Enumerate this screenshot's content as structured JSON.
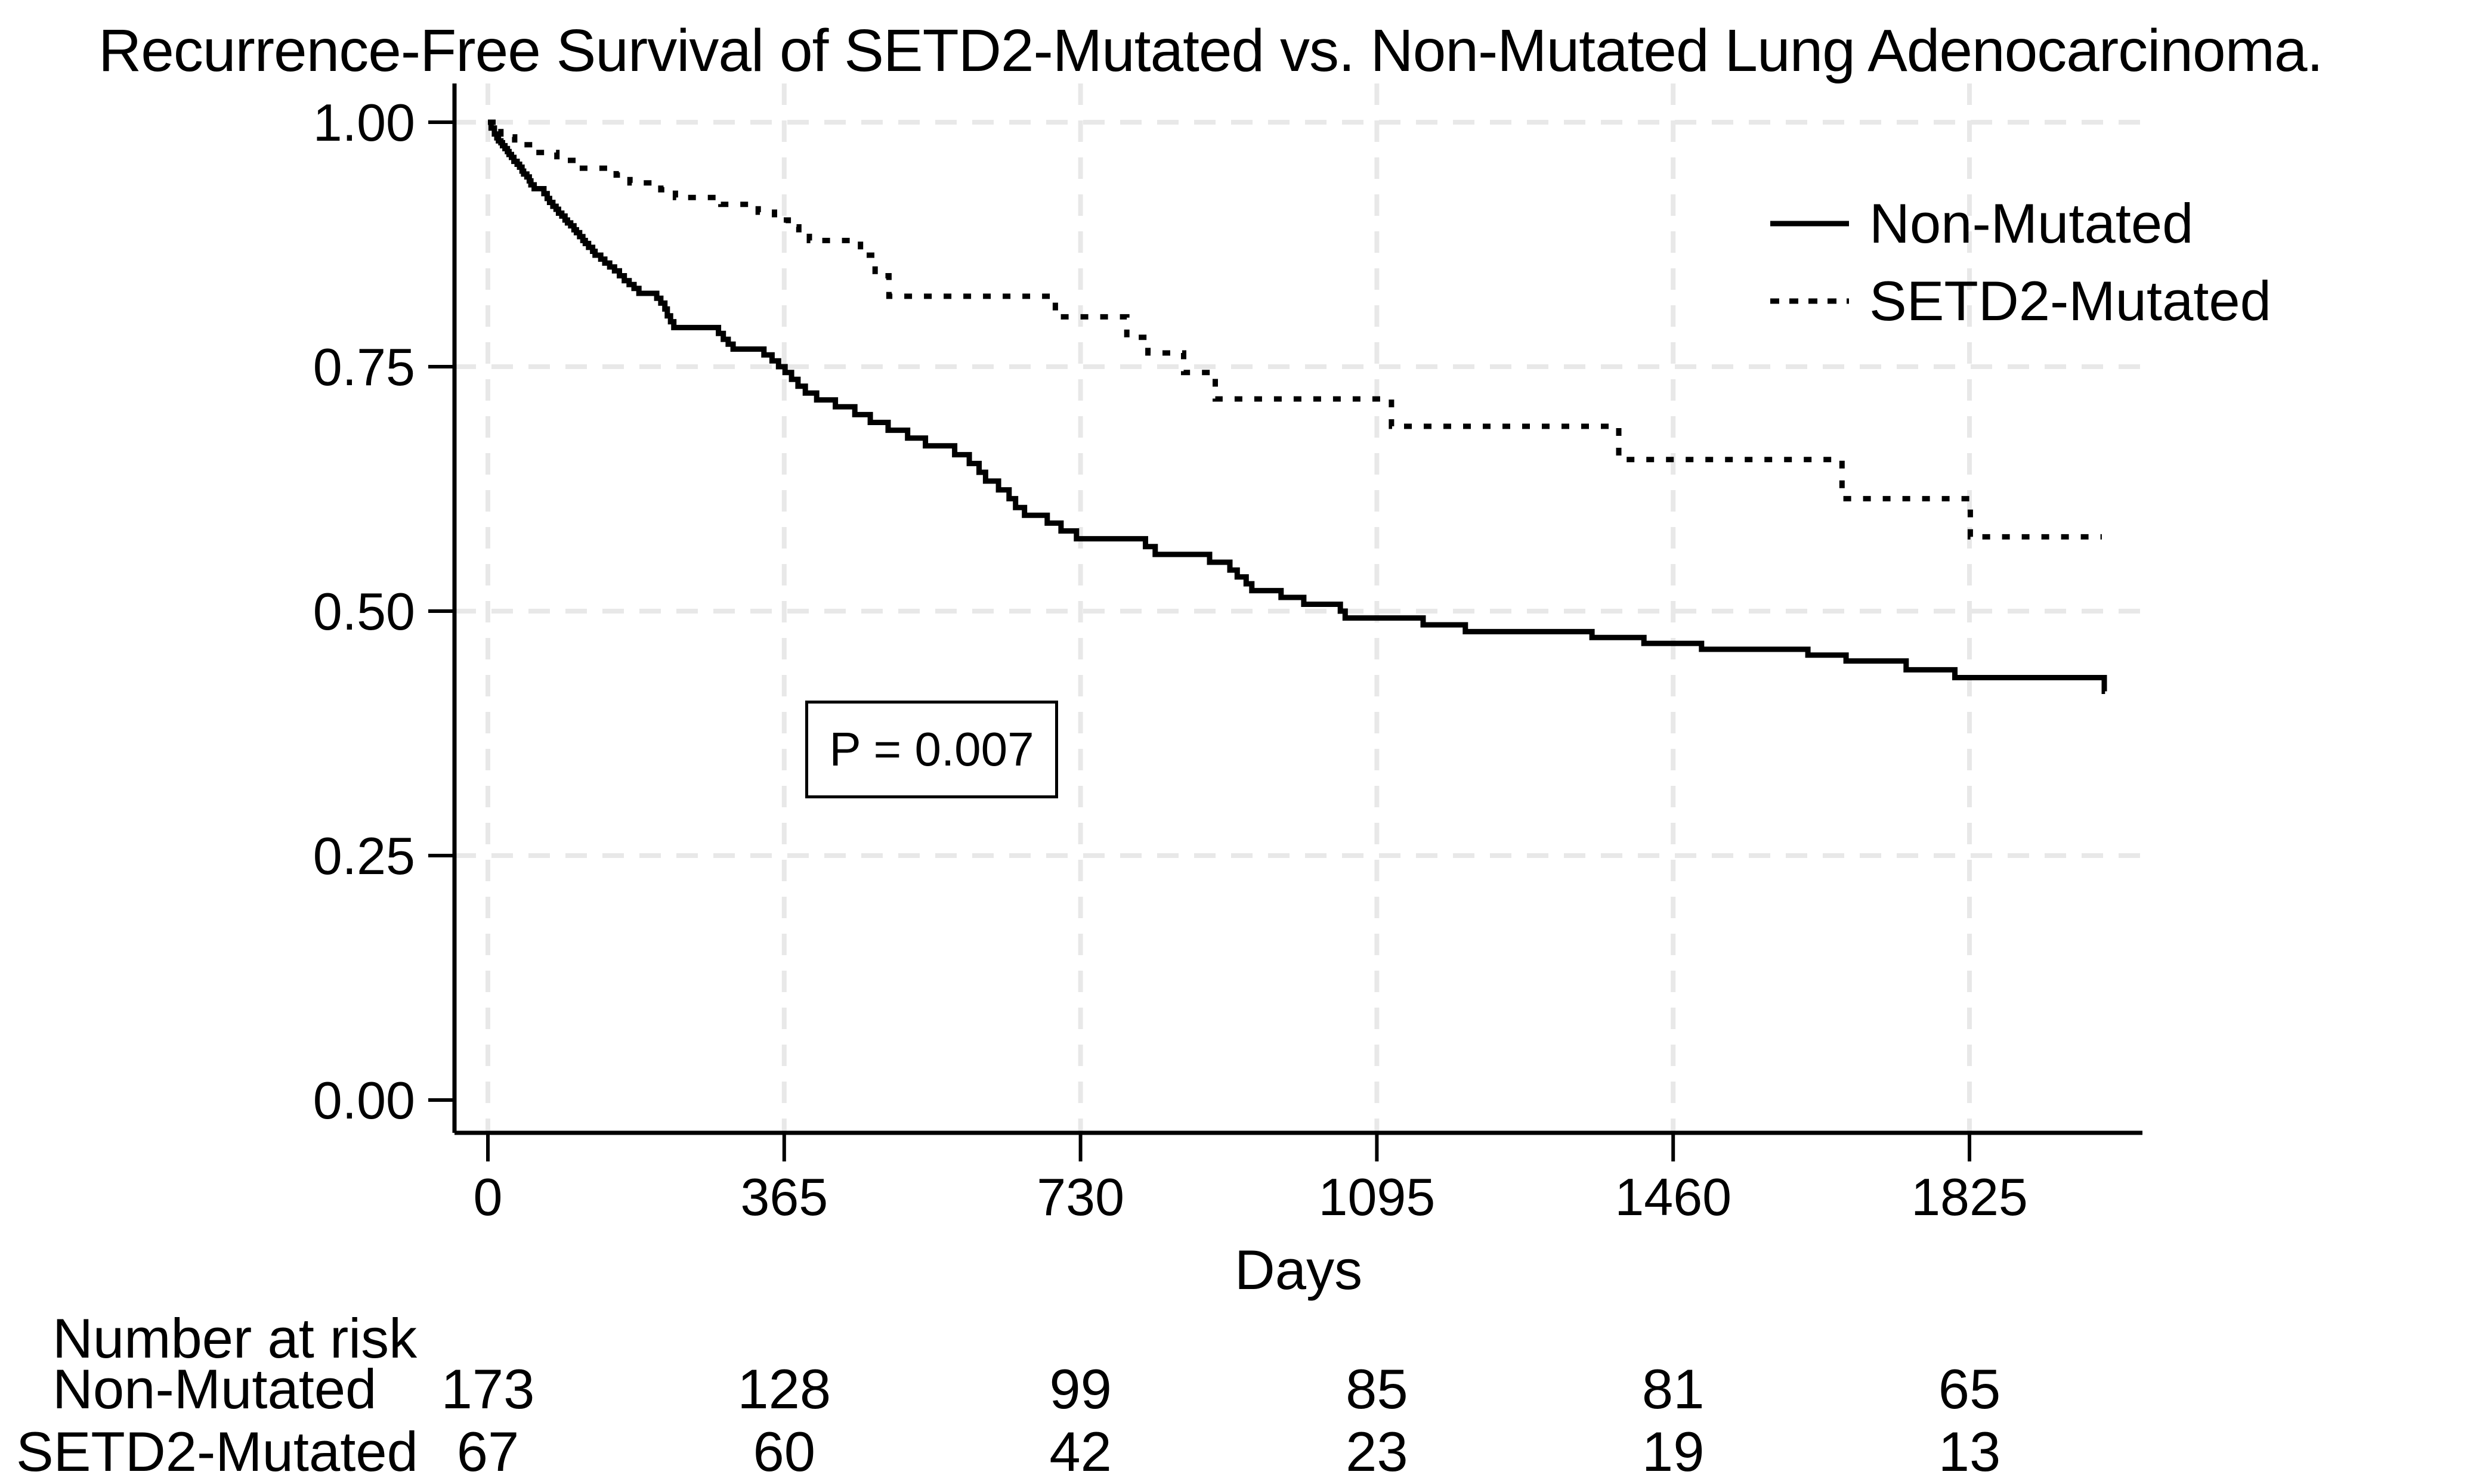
{
  "chart": {
    "title": "Recurrence-Free Survival of SETD2-Mutated vs. Non-Mutated Lung Adenocarcinoma.",
    "xlabel": "Days",
    "ylabel": "",
    "p_label": "P = 0.007"
  },
  "legend": {
    "items": [
      {
        "label": "Non-Mutated",
        "style": "solid"
      },
      {
        "label": "SETD2-Mutated",
        "style": "dotted"
      }
    ]
  },
  "risk_table": {
    "title": "Number at risk",
    "time_points": [
      0,
      365,
      730,
      1095,
      1460,
      1825
    ],
    "rows": [
      {
        "label": "Non-Mutated",
        "values": [
          "173",
          "128",
          "99",
          "85",
          "81",
          "65"
        ]
      },
      {
        "label": "SETD2-Mutated",
        "values": [
          "67",
          "60",
          "42",
          "23",
          "19",
          "13"
        ]
      }
    ]
  },
  "colors": {
    "line": "#000000",
    "grid": "#e8e8e8",
    "background": "#ffffff",
    "text": "#000000"
  },
  "chart_data": {
    "type": "line",
    "subtype": "kaplan-meier-step",
    "title": "Recurrence-Free Survival of SETD2-Mutated vs. Non-Mutated Lung Adenocarcinoma.",
    "xlabel": "Days",
    "ylabel": "",
    "xlim": [
      -40,
      2040
    ],
    "ylim": [
      0.0,
      1.03
    ],
    "x_ticks": [
      0,
      365,
      730,
      1095,
      1460,
      1825
    ],
    "y_ticks": [
      0.0,
      0.25,
      0.5,
      0.75,
      1.0
    ],
    "grid": true,
    "legend_position": "upper right",
    "annotations": [
      {
        "text": "P = 0.007",
        "box": true,
        "x_day": 560,
        "y_surv": 0.35
      }
    ],
    "series": [
      {
        "name": "Non-Mutated",
        "line_style": "solid",
        "color": "#000000",
        "end_day": 1992,
        "points": [
          [
            0,
            1.0
          ],
          [
            4,
            0.994
          ],
          [
            8,
            0.988
          ],
          [
            11,
            0.984
          ],
          [
            13,
            0.981
          ],
          [
            16,
            0.979
          ],
          [
            18,
            0.976
          ],
          [
            21,
            0.973
          ],
          [
            24,
            0.97
          ],
          [
            26,
            0.967
          ],
          [
            29,
            0.964
          ],
          [
            32,
            0.96
          ],
          [
            36,
            0.957
          ],
          [
            39,
            0.954
          ],
          [
            42,
            0.95
          ],
          [
            44,
            0.947
          ],
          [
            48,
            0.944
          ],
          [
            51,
            0.94
          ],
          [
            53,
            0.936
          ],
          [
            57,
            0.932
          ],
          [
            69,
            0.927
          ],
          [
            73,
            0.922
          ],
          [
            76,
            0.918
          ],
          [
            80,
            0.914
          ],
          [
            84,
            0.911
          ],
          [
            87,
            0.907
          ],
          [
            91,
            0.904
          ],
          [
            95,
            0.9
          ],
          [
            98,
            0.897
          ],
          [
            102,
            0.894
          ],
          [
            106,
            0.89
          ],
          [
            109,
            0.887
          ],
          [
            113,
            0.883
          ],
          [
            117,
            0.879
          ],
          [
            120,
            0.876
          ],
          [
            124,
            0.872
          ],
          [
            129,
            0.868
          ],
          [
            132,
            0.864
          ],
          [
            139,
            0.86
          ],
          [
            144,
            0.856
          ],
          [
            150,
            0.852
          ],
          [
            156,
            0.848
          ],
          [
            162,
            0.843
          ],
          [
            168,
            0.838
          ],
          [
            174,
            0.834
          ],
          [
            180,
            0.83
          ],
          [
            186,
            0.825
          ],
          [
            208,
            0.82
          ],
          [
            213,
            0.815
          ],
          [
            218,
            0.809
          ],
          [
            221,
            0.802
          ],
          [
            225,
            0.796
          ],
          [
            229,
            0.79
          ],
          [
            284,
            0.784
          ],
          [
            290,
            0.778
          ],
          [
            296,
            0.773
          ],
          [
            302,
            0.768
          ],
          [
            340,
            0.762
          ],
          [
            350,
            0.756
          ],
          [
            358,
            0.75
          ],
          [
            366,
            0.744
          ],
          [
            374,
            0.737
          ],
          [
            382,
            0.73
          ],
          [
            391,
            0.723
          ],
          [
            405,
            0.716
          ],
          [
            428,
            0.709
          ],
          [
            452,
            0.701
          ],
          [
            471,
            0.693
          ],
          [
            493,
            0.685
          ],
          [
            517,
            0.677
          ],
          [
            539,
            0.669
          ],
          [
            575,
            0.66
          ],
          [
            593,
            0.651
          ],
          [
            605,
            0.642
          ],
          [
            613,
            0.633
          ],
          [
            629,
            0.624
          ],
          [
            642,
            0.615
          ],
          [
            650,
            0.606
          ],
          [
            661,
            0.598
          ],
          [
            689,
            0.59
          ],
          [
            706,
            0.582
          ],
          [
            725,
            0.574
          ],
          [
            810,
            0.566
          ],
          [
            822,
            0.558
          ],
          [
            889,
            0.55
          ],
          [
            914,
            0.542
          ],
          [
            923,
            0.535
          ],
          [
            934,
            0.528
          ],
          [
            941,
            0.521
          ],
          [
            977,
            0.514
          ],
          [
            1005,
            0.507
          ],
          [
            1050,
            0.5
          ],
          [
            1056,
            0.493
          ],
          [
            1152,
            0.486
          ],
          [
            1204,
            0.479
          ],
          [
            1360,
            0.473
          ],
          [
            1424,
            0.467
          ],
          [
            1495,
            0.461
          ],
          [
            1626,
            0.455
          ],
          [
            1673,
            0.449
          ],
          [
            1747,
            0.44
          ],
          [
            1807,
            0.432
          ],
          [
            1991,
            0.418
          ]
        ]
      },
      {
        "name": "SETD2-Mutated",
        "line_style": "dotted",
        "color": "#000000",
        "end_day": 1988,
        "points": [
          [
            0,
            1.0
          ],
          [
            16,
            0.985
          ],
          [
            33,
            0.977
          ],
          [
            58,
            0.969
          ],
          [
            85,
            0.961
          ],
          [
            113,
            0.953
          ],
          [
            158,
            0.946
          ],
          [
            175,
            0.938
          ],
          [
            213,
            0.931
          ],
          [
            231,
            0.923
          ],
          [
            287,
            0.916
          ],
          [
            333,
            0.908
          ],
          [
            353,
            0.9
          ],
          [
            370,
            0.893
          ],
          [
            383,
            0.886
          ],
          [
            396,
            0.879
          ],
          [
            459,
            0.864
          ],
          [
            477,
            0.843
          ],
          [
            494,
            0.822
          ],
          [
            699,
            0.801
          ],
          [
            787,
            0.78
          ],
          [
            813,
            0.764
          ],
          [
            857,
            0.744
          ],
          [
            896,
            0.717
          ],
          [
            1113,
            0.689
          ],
          [
            1393,
            0.655
          ],
          [
            1668,
            0.615
          ],
          [
            1826,
            0.576
          ]
        ]
      }
    ]
  }
}
